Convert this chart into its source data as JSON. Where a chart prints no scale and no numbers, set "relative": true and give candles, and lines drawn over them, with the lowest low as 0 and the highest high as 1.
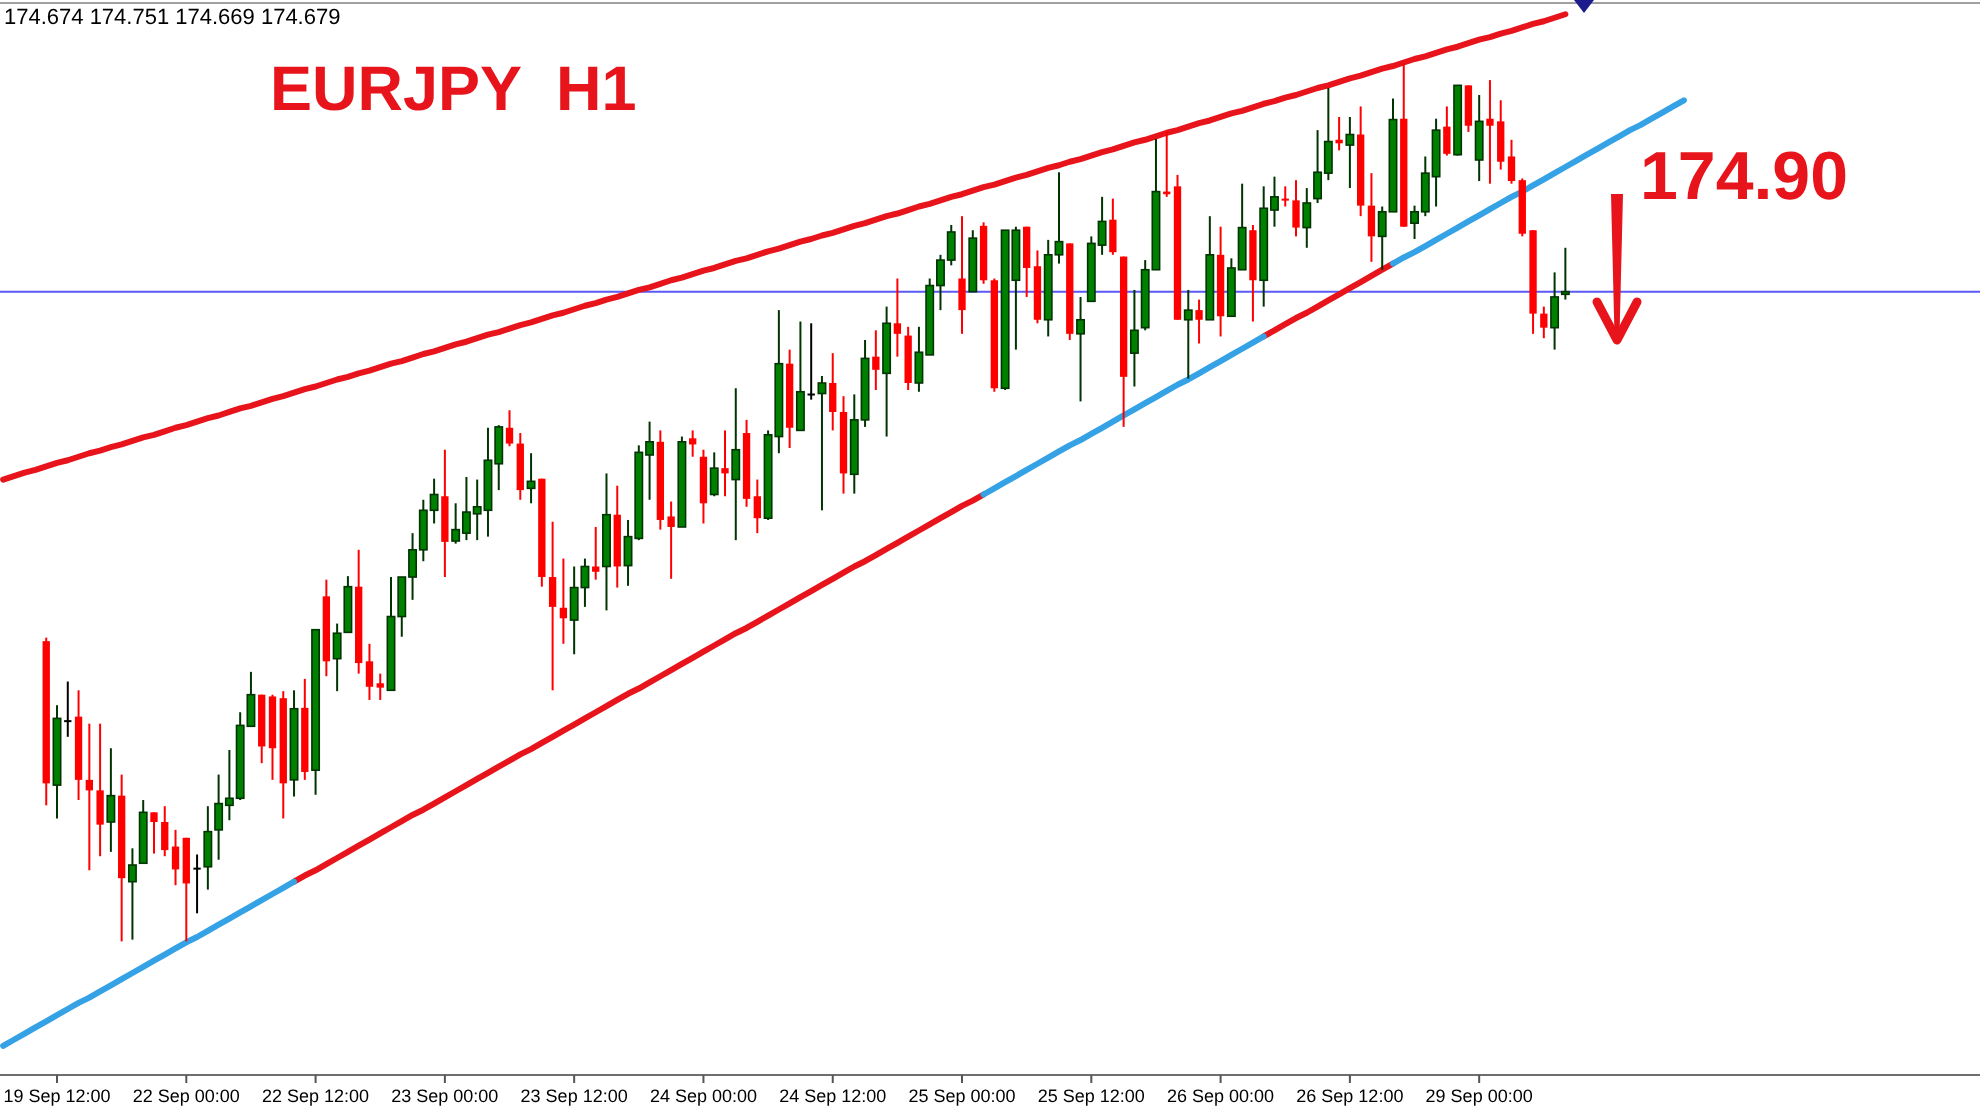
{
  "chart_data": {
    "type": "candlestick",
    "title": "EURJPY  H1",
    "relative": true,
    "categories": [
      null,
      null,
      null,
      null,
      null,
      "19 Sep 12:00",
      null,
      null,
      null,
      null,
      null,
      null,
      null,
      null,
      null,
      null,
      null,
      "22 Sep 00:00",
      null,
      null,
      null,
      null,
      null,
      null,
      null,
      null,
      null,
      null,
      null,
      "22 Sep 12:00",
      null,
      null,
      null,
      null,
      null,
      null,
      null,
      null,
      null,
      null,
      null,
      "23 Sep 00:00",
      null,
      null,
      null,
      null,
      null,
      null,
      null,
      null,
      null,
      null,
      null,
      "23 Sep 12:00",
      null,
      null,
      null,
      null,
      null,
      null,
      null,
      null,
      null,
      null,
      null,
      "24 Sep 00:00",
      null,
      null,
      null,
      null,
      null,
      null,
      null,
      null,
      null,
      null,
      null,
      "24 Sep 12:00",
      null,
      null,
      null,
      null,
      null,
      null,
      null,
      null,
      null,
      null,
      null,
      "25 Sep 00:00",
      null,
      null,
      null,
      null,
      null,
      null,
      null,
      null,
      null,
      null,
      null,
      "25 Sep 12:00",
      null,
      null,
      null,
      null,
      null,
      null,
      null,
      null,
      null,
      null,
      null,
      "26 Sep 00:00",
      null,
      null,
      null,
      null,
      null,
      null,
      null,
      null,
      null,
      null,
      null,
      "26 Sep 12:00",
      null,
      null,
      null,
      null,
      null,
      null,
      null,
      null,
      null,
      null,
      null,
      "29 Sep 00:00",
      null,
      null,
      null,
      null,
      null,
      null,
      null,
      null,
      null,
      null,
      null,
      null,
      null,
      null,
      null,
      null,
      null,
      null,
      null
    ],
    "ohlc": [
      null,
      null,
      null,
      null,
      [
        0.342,
        0.346,
        0.155,
        0.18
      ],
      [
        0.178,
        0.269,
        0.14,
        0.254
      ],
      [
        0.252,
        0.296,
        0.233,
        0.252
      ],
      [
        0.256,
        0.286,
        0.161,
        0.184
      ],
      [
        0.184,
        0.248,
        0.081,
        0.172
      ],
      [
        0.172,
        0.248,
        0.097,
        0.133
      ],
      [
        0.136,
        0.22,
        0.102,
        0.166
      ],
      [
        0.166,
        0.19,
        0.0,
        0.072
      ],
      [
        0.068,
        0.106,
        0.002,
        0.087
      ],
      [
        0.089,
        0.161,
        0.089,
        0.147
      ],
      [
        0.147,
        0.147,
        0.1,
        0.136
      ],
      [
        0.136,
        0.154,
        0.097,
        0.104
      ],
      [
        0.108,
        0.127,
        0.064,
        0.082
      ],
      [
        0.118,
        0.118,
        0.0,
        0.066
      ],
      [
        0.084,
        0.099,
        0.032,
        0.084
      ],
      [
        0.085,
        0.154,
        0.059,
        0.125
      ],
      [
        0.127,
        0.19,
        0.093,
        0.157
      ],
      [
        0.155,
        0.218,
        0.138,
        0.163
      ],
      [
        0.163,
        0.261,
        0.161,
        0.246
      ],
      [
        0.245,
        0.307,
        0.245,
        0.281
      ],
      [
        0.281,
        0.281,
        0.203,
        0.222
      ],
      [
        0.279,
        0.281,
        0.184,
        0.22
      ],
      [
        0.277,
        0.285,
        0.14,
        0.18
      ],
      [
        0.184,
        0.286,
        0.165,
        0.265
      ],
      [
        0.266,
        0.299,
        0.184,
        0.193
      ],
      [
        0.195,
        0.355,
        0.167,
        0.355
      ],
      [
        0.393,
        0.412,
        0.302,
        0.319
      ],
      [
        0.322,
        0.362,
        0.285,
        0.351
      ],
      [
        0.352,
        0.416,
        0.352,
        0.404
      ],
      [
        0.404,
        0.446,
        0.305,
        0.317
      ],
      [
        0.319,
        0.339,
        0.275,
        0.29
      ],
      [
        0.294,
        0.305,
        0.275,
        0.289
      ],
      [
        0.286,
        0.415,
        0.286,
        0.37
      ],
      [
        0.37,
        0.415,
        0.347,
        0.415
      ],
      [
        0.415,
        0.465,
        0.389,
        0.446
      ],
      [
        0.446,
        0.503,
        0.433,
        0.491
      ],
      [
        0.491,
        0.527,
        0.476,
        0.509
      ],
      [
        0.507,
        0.56,
        0.415,
        0.455
      ],
      [
        0.456,
        0.499,
        0.453,
        0.469
      ],
      [
        0.465,
        0.529,
        0.457,
        0.489
      ],
      [
        0.487,
        0.526,
        0.457,
        0.495
      ],
      [
        0.491,
        0.585,
        0.461,
        0.548
      ],
      [
        0.544,
        0.588,
        0.514,
        0.586
      ],
      [
        0.585,
        0.605,
        0.564,
        0.567
      ],
      [
        0.567,
        0.579,
        0.503,
        0.514
      ],
      [
        0.516,
        0.556,
        0.499,
        0.524
      ],
      [
        0.527,
        0.527,
        0.404,
        0.415
      ],
      [
        0.415,
        0.478,
        0.286,
        0.381
      ],
      [
        0.38,
        0.436,
        0.339,
        0.368
      ],
      [
        0.366,
        0.427,
        0.327,
        0.403
      ],
      [
        0.403,
        0.436,
        0.381,
        0.427
      ],
      [
        0.427,
        0.472,
        0.412,
        0.421
      ],
      [
        0.427,
        0.533,
        0.377,
        0.486
      ],
      [
        0.486,
        0.519,
        0.403,
        0.427
      ],
      [
        0.428,
        0.48,
        0.405,
        0.461
      ],
      [
        0.459,
        0.565,
        0.457,
        0.557
      ],
      [
        0.554,
        0.592,
        0.503,
        0.569
      ],
      [
        0.569,
        0.582,
        0.469,
        0.48
      ],
      [
        0.484,
        0.501,
        0.413,
        0.472
      ],
      [
        0.472,
        0.575,
        0.472,
        0.569
      ],
      [
        0.573,
        0.582,
        0.552,
        0.566
      ],
      [
        0.552,
        0.56,
        0.476,
        0.499
      ],
      [
        0.509,
        0.557,
        0.507,
        0.539
      ],
      [
        0.539,
        0.582,
        0.507,
        0.533
      ],
      [
        0.526,
        0.63,
        0.457,
        0.56
      ],
      [
        0.579,
        0.594,
        0.495,
        0.504
      ],
      [
        0.507,
        0.526,
        0.465,
        0.482
      ],
      [
        0.482,
        0.582,
        0.48,
        0.577
      ],
      [
        0.575,
        0.719,
        0.556,
        0.658
      ],
      [
        0.658,
        0.674,
        0.562,
        0.585
      ],
      [
        0.582,
        0.706,
        0.582,
        0.626
      ],
      [
        0.624,
        0.704,
        0.617,
        0.624
      ],
      [
        0.624,
        0.644,
        0.491,
        0.636
      ],
      [
        0.636,
        0.67,
        0.582,
        0.603
      ],
      [
        0.603,
        0.621,
        0.51,
        0.533
      ],
      [
        0.532,
        0.623,
        0.51,
        0.594
      ],
      [
        0.594,
        0.685,
        0.586,
        0.664
      ],
      [
        0.666,
        0.696,
        0.628,
        0.651
      ],
      [
        0.647,
        0.723,
        0.575,
        0.704
      ],
      [
        0.704,
        0.755,
        0.666,
        0.692
      ],
      [
        0.69,
        0.7,
        0.628,
        0.636
      ],
      [
        0.636,
        0.7,
        0.626,
        0.671
      ],
      [
        0.668,
        0.755,
        0.668,
        0.747
      ],
      [
        0.747,
        0.782,
        0.719,
        0.776
      ],
      [
        0.776,
        0.816,
        0.77,
        0.808
      ],
      [
        0.755,
        0.826,
        0.692,
        0.719
      ],
      [
        0.74,
        0.81,
        0.74,
        0.801
      ],
      [
        0.815,
        0.819,
        0.749,
        0.753
      ],
      [
        0.753,
        0.755,
        0.626,
        0.63
      ],
      [
        0.63,
        0.81,
        0.628,
        0.81
      ],
      [
        0.753,
        0.814,
        0.674,
        0.81
      ],
      [
        0.814,
        0.814,
        0.734,
        0.767
      ],
      [
        0.769,
        0.787,
        0.704,
        0.708
      ],
      [
        0.708,
        0.799,
        0.689,
        0.782
      ],
      [
        0.782,
        0.876,
        0.772,
        0.797
      ],
      [
        0.795,
        0.795,
        0.685,
        0.692
      ],
      [
        0.692,
        0.734,
        0.615,
        0.708
      ],
      [
        0.729,
        0.803,
        0.729,
        0.795
      ],
      [
        0.793,
        0.848,
        0.782,
        0.82
      ],
      [
        0.822,
        0.846,
        0.782,
        0.785
      ],
      [
        0.78,
        0.78,
        0.586,
        0.643
      ],
      [
        0.67,
        0.742,
        0.632,
        0.696
      ],
      [
        0.699,
        0.776,
        0.696,
        0.765
      ],
      [
        0.765,
        0.914,
        0.765,
        0.854
      ],
      [
        0.854,
        0.922,
        0.848,
        0.851
      ],
      [
        0.86,
        0.873,
        0.708,
        0.708
      ],
      [
        0.708,
        0.742,
        0.641,
        0.719
      ],
      [
        0.719,
        0.731,
        0.681,
        0.708
      ],
      [
        0.708,
        0.826,
        0.708,
        0.782
      ],
      [
        0.782,
        0.814,
        0.689,
        0.712
      ],
      [
        0.712,
        0.778,
        0.712,
        0.767
      ],
      [
        0.765,
        0.863,
        0.765,
        0.813
      ],
      [
        0.81,
        0.816,
        0.706,
        0.753
      ],
      [
        0.753,
        0.86,
        0.723,
        0.835
      ],
      [
        0.833,
        0.871,
        0.814,
        0.848
      ],
      [
        0.846,
        0.86,
        0.837,
        0.844
      ],
      [
        0.844,
        0.867,
        0.803,
        0.813
      ],
      [
        0.813,
        0.858,
        0.79,
        0.841
      ],
      [
        0.846,
        0.924,
        0.841,
        0.876
      ],
      [
        0.875,
        0.972,
        0.867,
        0.911
      ],
      [
        0.913,
        0.939,
        0.901,
        0.909
      ],
      [
        0.907,
        0.939,
        0.858,
        0.919
      ],
      [
        0.919,
        0.951,
        0.826,
        0.838
      ],
      [
        0.838,
        0.875,
        0.774,
        0.803
      ],
      [
        0.803,
        0.837,
        0.765,
        0.831
      ],
      [
        0.831,
        0.96,
        0.831,
        0.936
      ],
      [
        0.937,
        1.0,
        0.814,
        0.814
      ],
      [
        0.818,
        0.838,
        0.8,
        0.831
      ],
      [
        0.831,
        0.894,
        0.826,
        0.875
      ],
      [
        0.871,
        0.937,
        0.837,
        0.924
      ],
      [
        0.928,
        0.951,
        0.895,
        0.897
      ],
      [
        0.896,
        0.975,
        0.895,
        0.975
      ],
      [
        0.975,
        0.975,
        0.922,
        0.929
      ],
      [
        0.89,
        0.964,
        0.866,
        0.934
      ],
      [
        0.937,
        0.981,
        0.863,
        0.929
      ],
      [
        0.934,
        0.958,
        0.879,
        0.888
      ],
      [
        0.894,
        0.913,
        0.863,
        0.866
      ],
      [
        0.867,
        0.869,
        0.803,
        0.806
      ],
      [
        0.81,
        0.81,
        0.692,
        0.715
      ],
      [
        0.715,
        0.723,
        0.687,
        0.699
      ],
      [
        0.699,
        0.762,
        0.674,
        0.734
      ],
      [
        0.737,
        0.79,
        0.731,
        0.74
      ],
      null,
      null,
      null,
      null,
      null,
      null,
      null,
      null,
      null,
      null,
      null
    ],
    "colors": [
      null,
      null,
      null,
      null,
      "#ff0000",
      "#008000",
      "#000000",
      "#ff0000",
      "#ff0000",
      "#ff0000",
      "#008000",
      "#ff0000",
      "#008000",
      "#008000",
      "#ff0000",
      "#ff0000",
      "#ff0000",
      "#ff0000",
      "#000000",
      "#008000",
      "#008000",
      "#008000",
      "#008000",
      "#008000",
      "#ff0000",
      "#ff0000",
      "#ff0000",
      "#008000",
      "#ff0000",
      "#008000",
      "#ff0000",
      "#008000",
      "#008000",
      "#ff0000",
      "#ff0000",
      "#ff0000",
      "#008000",
      "#008000",
      "#008000",
      "#008000",
      "#008000",
      "#ff0000",
      "#008000",
      "#008000",
      "#008000",
      "#008000",
      "#008000",
      "#ff0000",
      "#ff0000",
      "#008000",
      "#ff0000",
      "#ff0000",
      "#ff0000",
      "#008000",
      "#008000",
      "#ff0000",
      "#008000",
      "#ff0000",
      "#008000",
      "#008000",
      "#008000",
      "#ff0000",
      "#ff0000",
      "#008000",
      "#ff0000",
      "#ff0000",
      "#008000",
      "#ff0000",
      "#008000",
      "#ff0000",
      "#ff0000",
      "#008000",
      "#008000",
      "#ff0000",
      "#008000",
      "#000000",
      "#008000",
      "#ff0000",
      "#ff0000",
      "#008000",
      "#008000",
      "#ff0000",
      "#008000",
      "#ff0000",
      "#ff0000",
      "#008000",
      "#008000",
      "#008000",
      "#008000",
      "#ff0000",
      "#008000",
      "#ff0000",
      "#ff0000",
      "#008000",
      "#008000",
      "#ff0000",
      "#ff0000",
      "#008000",
      "#008000",
      "#ff0000",
      "#008000",
      "#008000",
      "#008000",
      "#ff0000",
      "#ff0000",
      "#008000",
      "#008000",
      "#008000",
      "#ff0000",
      "#ff0000",
      "#008000",
      "#ff0000",
      "#008000",
      "#ff0000",
      "#008000",
      "#008000",
      "#ff0000",
      "#008000",
      "#008000",
      "#ff0000",
      "#ff0000",
      "#008000",
      "#008000",
      "#008000",
      "#ff0000",
      "#008000",
      "#ff0000",
      "#ff0000",
      "#008000",
      "#008000",
      "#ff0000",
      "#008000",
      "#008000",
      "#008000",
      "#ff0000",
      "#008000",
      "#ff0000",
      "#008000",
      "#ff0000",
      "#ff0000",
      "#ff0000",
      "#ff0000",
      "#ff0000",
      "#ff0000",
      "#008000",
      "#008000",
      null,
      null,
      null,
      null,
      null,
      null,
      null,
      null,
      null,
      null,
      null
    ],
    "series": [
      {
        "type": "line",
        "color": "#e8141c",
        "values": [
          0.526,
          0.53,
          0.534,
          0.537,
          0.541,
          0.545,
          0.548,
          0.552,
          0.556,
          0.559,
          0.563,
          0.566,
          0.57,
          0.574,
          0.577,
          0.581,
          0.585,
          0.588,
          0.592,
          0.596,
          0.599,
          0.603,
          0.607,
          0.61,
          0.614,
          0.618,
          0.621,
          0.625,
          0.629,
          0.632,
          0.636,
          0.64,
          0.643,
          0.647,
          0.65,
          0.654,
          0.658,
          0.661,
          0.665,
          0.669,
          0.672,
          0.676,
          0.68,
          0.683,
          0.687,
          0.691,
          0.694,
          0.698,
          0.702,
          0.705,
          0.709,
          0.713,
          0.716,
          0.72,
          0.724,
          0.727,
          0.731,
          0.734,
          0.738,
          0.742,
          0.745,
          0.749,
          0.753,
          0.756,
          0.76,
          0.764,
          0.767,
          0.771,
          0.775,
          0.778,
          0.782,
          0.786,
          0.789,
          0.793,
          0.797,
          0.8,
          0.804,
          0.807,
          0.811,
          0.815,
          0.818,
          0.822,
          0.826,
          0.829,
          0.833,
          0.837,
          0.84,
          0.844,
          0.848,
          0.851,
          0.855,
          0.859,
          0.862,
          0.866,
          0.87,
          0.873,
          0.877,
          0.881,
          0.884,
          0.888,
          0.891,
          0.895,
          0.899,
          0.902,
          0.906,
          0.91,
          0.913,
          0.917,
          0.921,
          0.924,
          0.928,
          0.932,
          0.935,
          0.939,
          0.943,
          0.946,
          0.95,
          0.954,
          0.957,
          0.961,
          0.964,
          0.968,
          0.972,
          0.975,
          0.979,
          0.983,
          0.986,
          0.99,
          0.994,
          0.997,
          1.001,
          1.005,
          1.008,
          1.012,
          1.016,
          1.019,
          1.023,
          1.027,
          1.03,
          1.034,
          1.037,
          1.041,
          1.045,
          1.048,
          1.052,
          1.056,
          null,
          null,
          null,
          null,
          null,
          null,
          null,
          null,
          null,
          null,
          null
        ]
      },
      {
        "type": "line",
        "color": "#e8141c",
        "values": [
          null,
          null,
          null,
          null,
          null,
          null,
          null,
          null,
          null,
          null,
          null,
          null,
          null,
          null,
          null,
          null,
          null,
          null,
          null,
          null,
          null,
          null,
          null,
          null,
          null,
          null,
          null,
          0.068,
          0.075,
          0.081,
          0.088,
          0.095,
          0.102,
          0.109,
          0.116,
          0.123,
          0.13,
          0.137,
          0.144,
          0.15,
          0.157,
          0.164,
          0.171,
          0.178,
          0.185,
          0.192,
          0.199,
          0.206,
          0.213,
          0.219,
          0.226,
          0.233,
          0.24,
          0.247,
          0.254,
          0.261,
          0.268,
          0.275,
          0.282,
          0.288,
          0.295,
          0.302,
          0.309,
          0.316,
          0.323,
          0.33,
          0.337,
          0.344,
          0.351,
          0.357,
          0.364,
          0.371,
          0.378,
          0.385,
          0.392,
          0.399,
          0.406,
          0.413,
          0.42,
          0.427,
          0.433,
          0.44,
          0.447,
          0.454,
          0.461,
          0.468,
          0.475,
          0.482,
          0.489,
          0.496,
          0.502,
          0.509,
          null,
          null,
          null,
          null,
          null,
          null,
          null,
          null,
          null,
          null,
          null,
          null,
          null,
          null,
          null,
          null,
          null,
          null,
          null,
          null,
          null,
          null,
          null,
          null,
          null,
          0.689,
          0.696,
          0.703,
          0.71,
          0.716,
          0.723,
          0.73,
          0.737,
          0.744,
          0.751,
          0.758,
          0.765,
          0.772,
          null,
          null,
          null,
          null,
          null,
          null,
          null,
          null,
          null,
          null,
          null,
          null,
          null,
          null,
          null,
          null,
          null,
          null,
          null,
          null,
          null,
          null,
          null,
          null,
          null,
          null,
          null
        ]
      },
      {
        "type": "line",
        "color": "#35a2e6",
        "values": [
          -0.119,
          -0.112,
          -0.105,
          -0.098,
          -0.091,
          -0.084,
          -0.077,
          -0.07,
          -0.064,
          -0.057,
          -0.05,
          -0.043,
          -0.036,
          -0.029,
          -0.022,
          -0.015,
          -0.008,
          -0.001,
          0.005,
          0.012,
          0.019,
          0.026,
          0.033,
          0.04,
          0.047,
          0.054,
          0.061,
          0.068,
          null,
          null,
          null,
          null,
          null,
          null,
          null,
          null,
          null,
          null,
          null,
          null,
          null,
          null,
          null,
          null,
          null,
          null,
          null,
          null,
          null,
          null,
          null,
          null,
          null,
          null,
          null,
          null,
          null,
          null,
          null,
          null,
          null,
          null,
          null,
          null,
          null,
          null,
          null,
          null,
          null,
          null,
          null,
          null,
          null,
          null,
          null,
          null,
          null,
          null,
          null,
          null,
          null,
          null,
          null,
          null,
          null,
          null,
          null,
          null,
          null,
          null,
          null,
          0.509,
          0.516,
          0.523,
          0.53,
          0.537,
          0.544,
          0.551,
          0.558,
          0.565,
          0.571,
          0.578,
          0.585,
          0.592,
          0.599,
          0.606,
          0.613,
          0.62,
          0.627,
          0.634,
          0.64,
          0.647,
          0.654,
          0.661,
          0.668,
          0.675,
          0.682,
          0.689,
          null,
          null,
          null,
          null,
          null,
          null,
          null,
          null,
          null,
          null,
          null,
          0.772,
          0.779,
          0.785,
          0.792,
          0.799,
          0.806,
          0.813,
          0.82,
          0.827,
          0.834,
          0.841,
          0.848,
          0.854,
          0.861,
          0.868,
          0.875,
          0.882,
          0.889,
          0.896,
          0.903,
          0.91,
          0.917,
          0.924,
          0.93,
          0.937,
          0.944,
          0.951,
          0.958
        ]
      }
    ],
    "ref_lines": [
      {
        "axis": "y",
        "value": 0.74,
        "color": "#5a5af5"
      }
    ],
    "annotations": [
      "174.674 174.751 174.669 174.679",
      "174.90"
    ]
  }
}
